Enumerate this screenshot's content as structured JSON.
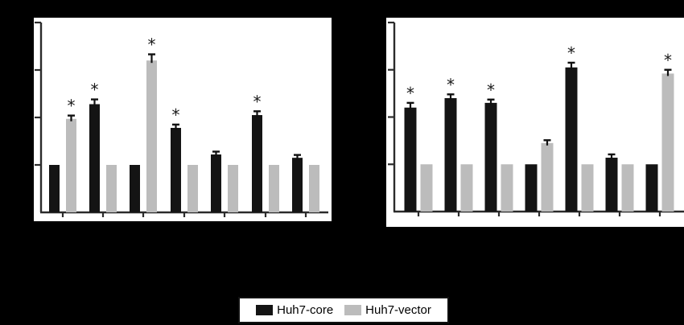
{
  "figure": {
    "background_color": "#000000",
    "plot_background_color": "#ffffff",
    "axis_color": "#2b2b2b",
    "sig_marker": "*",
    "legend": {
      "items": [
        {
          "label": "Huh7-core",
          "color": "#141414"
        },
        {
          "label": "Huh7-vector",
          "color": "#bcbcbc"
        }
      ]
    }
  },
  "chart_data": [
    {
      "type": "bar",
      "panel": "left",
      "title": "",
      "xlabel": "",
      "ylabel": "",
      "ylim": [
        0,
        4
      ],
      "yticks": [
        0,
        1,
        2,
        3,
        4
      ],
      "grid": false,
      "legend_position": "bottom-center",
      "categories": [
        "",
        "",
        "",
        "",
        "",
        "",
        ""
      ],
      "series": [
        {
          "name": "Huh7-core",
          "color": "#141414",
          "values": [
            1.0,
            2.28,
            1.0,
            1.78,
            1.22,
            2.05,
            1.15
          ],
          "errors": [
            0,
            0.1,
            0,
            0.07,
            0.06,
            0.08,
            0.06
          ],
          "significant": [
            false,
            true,
            false,
            true,
            false,
            true,
            false
          ]
        },
        {
          "name": "Huh7-vector",
          "color": "#bcbcbc",
          "values": [
            1.97,
            1.0,
            3.2,
            1.0,
            1.0,
            1.0,
            1.0
          ],
          "errors": [
            0.07,
            0,
            0.13,
            0,
            0,
            0,
            0
          ],
          "significant": [
            true,
            false,
            true,
            false,
            false,
            false,
            false
          ]
        }
      ]
    },
    {
      "type": "bar",
      "panel": "right",
      "title": "",
      "xlabel": "",
      "ylabel": "",
      "ylim": [
        0,
        4
      ],
      "yticks": [
        0,
        1,
        2,
        3,
        4
      ],
      "grid": false,
      "legend_position": "bottom-center",
      "categories": [
        "",
        "",
        "",
        "",
        "",
        "",
        ""
      ],
      "series": [
        {
          "name": "Huh7-core",
          "color": "#141414",
          "values": [
            2.2,
            2.4,
            2.3,
            1.0,
            3.05,
            1.14,
            1.0
          ],
          "errors": [
            0.1,
            0.08,
            0.07,
            0,
            0.1,
            0.07,
            0
          ],
          "significant": [
            true,
            true,
            true,
            false,
            true,
            false,
            false
          ]
        },
        {
          "name": "Huh7-vector",
          "color": "#bcbcbc",
          "values": [
            1.0,
            1.0,
            1.0,
            1.45,
            1.0,
            1.0,
            2.92
          ],
          "errors": [
            0,
            0,
            0,
            0.06,
            0,
            0,
            0.08
          ],
          "significant": [
            false,
            false,
            false,
            false,
            false,
            false,
            true
          ]
        }
      ]
    }
  ]
}
